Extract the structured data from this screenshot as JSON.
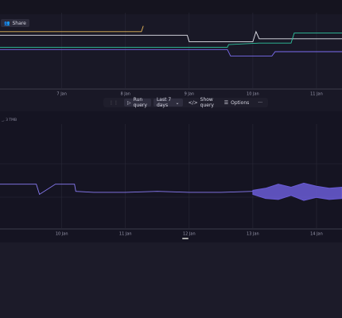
{
  "share": "Share",
  "panel_label": "_, 3 TMB",
  "toolbar": {
    "run": "Run query",
    "range": "Last 7 days",
    "show": "Show query",
    "options": "Options"
  },
  "charts": [
    {
      "type": "line",
      "xlim": [
        6.03,
        11.4
      ],
      "ylim": [
        0,
        100
      ],
      "xticks": [
        {
          "value": 7,
          "label": "7 Jan"
        },
        {
          "value": 8,
          "label": "8 Jan"
        },
        {
          "value": 9,
          "label": "9 Jan"
        },
        {
          "value": 10,
          "label": "10 Jan"
        },
        {
          "value": 11,
          "label": "11 Jan"
        }
      ],
      "series": [
        {
          "color": "#e8b75a",
          "x": [
            6.03,
            8.25,
            8.28
          ],
          "values": [
            78,
            78,
            86
          ]
        },
        {
          "color": "#e6e6ee",
          "x": [
            6.03,
            8.97,
            9.0,
            10.0,
            10.05,
            10.1,
            11.4
          ],
          "values": [
            73,
            73,
            64,
            64,
            78,
            68,
            68
          ]
        },
        {
          "color": "#2fc4a0",
          "x": [
            6.03,
            9.6,
            9.62,
            10.1,
            10.6,
            10.65,
            11.4
          ],
          "values": [
            56,
            56,
            60,
            62,
            62,
            76,
            76
          ]
        },
        {
          "color": "#7b6cf0",
          "x": [
            6.03,
            9.6,
            9.65,
            10.3,
            10.35,
            11.4
          ],
          "values": [
            53,
            53,
            44,
            44,
            50,
            50
          ]
        }
      ]
    },
    {
      "type": "band",
      "xlim": [
        9.03,
        14.4
      ],
      "ylim": [
        0,
        100
      ],
      "xticks": [
        {
          "value": 10,
          "label": "10 Jan"
        },
        {
          "value": 11,
          "label": "11 Jan"
        },
        {
          "value": 12,
          "label": "12 Jan"
        },
        {
          "value": 13,
          "label": "13 Jan"
        },
        {
          "value": 14,
          "label": "14 Jan"
        }
      ],
      "series": [
        {
          "color": "#8a7cf5",
          "x": [
            9.03,
            9.6,
            9.65,
            9.9,
            10.2,
            10.22,
            10.5,
            11.0,
            11.5,
            12.0,
            12.5,
            13.0
          ],
          "values": [
            44,
            44,
            34,
            44,
            44,
            37,
            36,
            36,
            37,
            36,
            36,
            37
          ]
        },
        {
          "color": "#6a5cd6",
          "x": [
            13.0,
            13.2,
            13.4,
            13.6,
            13.8,
            14.0,
            14.2,
            14.4
          ],
          "low": [
            34,
            30,
            29,
            33,
            28,
            31,
            29,
            30
          ],
          "high": [
            38,
            40,
            44,
            41,
            45,
            42,
            40,
            41
          ]
        }
      ]
    }
  ]
}
